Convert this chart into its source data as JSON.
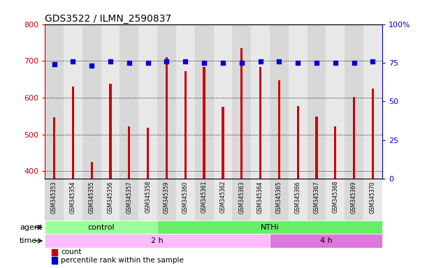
{
  "title": "GDS3522 / ILMN_2590837",
  "samples": [
    "GSM345353",
    "GSM345354",
    "GSM345355",
    "GSM345356",
    "GSM345357",
    "GSM345358",
    "GSM345359",
    "GSM345360",
    "GSM345361",
    "GSM345362",
    "GSM345363",
    "GSM345364",
    "GSM345365",
    "GSM345366",
    "GSM345367",
    "GSM345368",
    "GSM345369",
    "GSM345370"
  ],
  "counts": [
    547,
    630,
    425,
    638,
    522,
    519,
    710,
    672,
    683,
    575,
    735,
    683,
    648,
    578,
    548,
    522,
    602,
    625
  ],
  "percentile_ranks": [
    74,
    76,
    73,
    76,
    75,
    75,
    76,
    76,
    75,
    75,
    75,
    76,
    76,
    75,
    75,
    75,
    75,
    76
  ],
  "ylim_left": [
    380,
    800
  ],
  "ylim_right": [
    0,
    100
  ],
  "yticks_left": [
    400,
    500,
    600,
    700,
    800
  ],
  "yticks_right": [
    0,
    25,
    50,
    75,
    100
  ],
  "bar_color": "#cc0000",
  "dot_color": "#0000cc",
  "col_bg_even": "#d8d8d8",
  "col_bg_odd": "#e8e8e8",
  "agent_groups": [
    {
      "label": "control",
      "start": 0,
      "end": 6,
      "color": "#99ff99"
    },
    {
      "label": "NTHi",
      "start": 6,
      "end": 18,
      "color": "#66ee66"
    }
  ],
  "time_groups": [
    {
      "label": "2 h",
      "start": 0,
      "end": 12,
      "color": "#ffbbff"
    },
    {
      "label": "4 h",
      "start": 12,
      "end": 18,
      "color": "#dd77dd"
    }
  ],
  "legend_count_label": "count",
  "legend_pct_label": "percentile rank within the sample",
  "agent_label": "agent",
  "time_label": "time",
  "background_color": "#ffffff",
  "grid_color": "#000000",
  "tick_color_left": "#cc0000",
  "tick_color_right": "#0000cc",
  "bar_width": 0.12
}
